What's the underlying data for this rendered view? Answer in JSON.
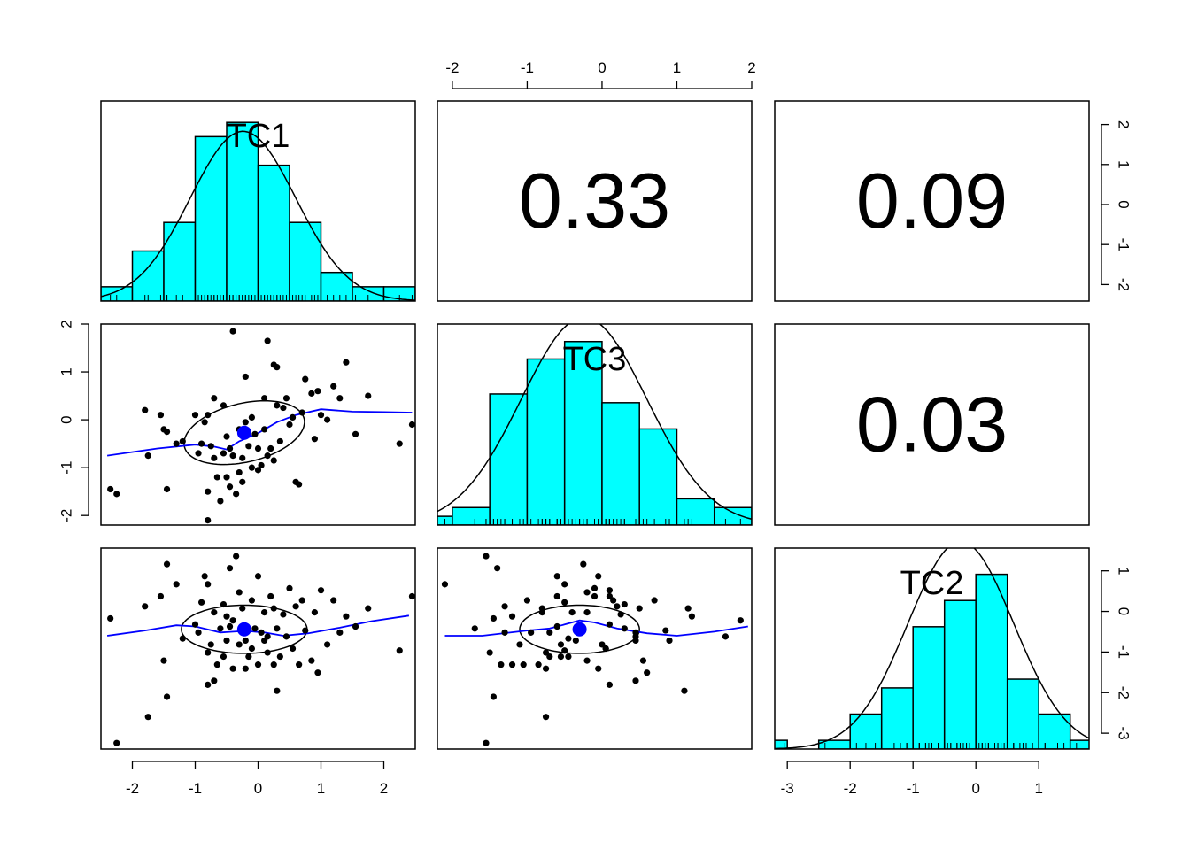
{
  "chart_data": {
    "type": "scatter",
    "variables": [
      "TC1",
      "TC3",
      "TC2"
    ],
    "title": "",
    "colors": {
      "hist_fill": "#00FFFF",
      "smooth_line": "#0000FF",
      "centroid": "#0000FF",
      "points": "#000000",
      "curve": "#000000"
    },
    "correlations": [
      {
        "row": "TC1",
        "col": "TC3",
        "value": "0.33"
      },
      {
        "row": "TC1",
        "col": "TC2",
        "value": "0.09"
      },
      {
        "row": "TC3",
        "col": "TC2",
        "value": "0.03"
      }
    ],
    "axes": {
      "TC1": {
        "range": [
          -2.5,
          2.5
        ],
        "ticks": [
          "-2",
          "-1",
          "0",
          "1",
          "2"
        ]
      },
      "TC3": {
        "range": [
          -2.2,
          2.0
        ],
        "ticks": [
          "-2",
          "-1",
          "0",
          "1",
          "2"
        ]
      },
      "TC2": {
        "range": [
          -3.2,
          1.8
        ],
        "ticks": [
          "-3",
          "-2",
          "-1",
          "0",
          "1"
        ]
      }
    },
    "histograms": {
      "TC1": {
        "breaks": [
          -2.5,
          -2.0,
          -1.5,
          -1.0,
          -0.5,
          0.0,
          0.5,
          1.0,
          1.5,
          2.0,
          2.5
        ],
        "density": [
          0.04,
          0.14,
          0.22,
          0.46,
          0.5,
          0.38,
          0.22,
          0.08,
          0.04,
          0.04
        ],
        "ymax": 0.56,
        "mean": -0.24,
        "sd": 0.84
      },
      "TC3": {
        "breaks": [
          -2.5,
          -2.0,
          -1.5,
          -1.0,
          -0.5,
          0.0,
          0.5,
          1.0,
          1.5,
          2.0
        ],
        "density": [
          0.02,
          0.04,
          0.3,
          0.38,
          0.42,
          0.28,
          0.22,
          0.06,
          0.04
        ],
        "ymax": 0.46,
        "mean": -0.24,
        "sd": 0.84
      },
      "TC2": {
        "breaks": [
          -3.5,
          -3.0,
          -2.5,
          -2.0,
          -1.5,
          -1.0,
          -0.5,
          0.0,
          0.5,
          1.0,
          1.5,
          2.0
        ],
        "density": [
          0.02,
          0.0,
          0.02,
          0.08,
          0.14,
          0.28,
          0.34,
          0.4,
          0.16,
          0.08,
          0.02
        ],
        "ymax": 0.46,
        "mean": -0.24,
        "sd": 0.84
      }
    },
    "pairs": {
      "TC1_TC3": {
        "center": [
          -0.22,
          -0.27
        ],
        "ellipse": {
          "rx": 1.0,
          "ry": 0.6,
          "angle": 21
        },
        "smooth": [
          [
            -2.4,
            -0.75
          ],
          [
            -1.6,
            -0.6
          ],
          [
            -1.0,
            -0.52
          ],
          [
            -0.7,
            -0.56
          ],
          [
            -0.5,
            -0.62
          ],
          [
            -0.3,
            -0.45
          ],
          [
            0.0,
            -0.28
          ],
          [
            0.3,
            -0.05
          ],
          [
            0.6,
            0.1
          ],
          [
            1.0,
            0.22
          ],
          [
            1.5,
            0.17
          ],
          [
            2.0,
            0.16
          ],
          [
            2.45,
            0.15
          ]
        ]
      },
      "TC1_TC2": {
        "center": [
          -0.22,
          -0.22
        ],
        "ellipse": {
          "rx": 1.0,
          "ry": 0.6,
          "angle": 0
        },
        "smooth": [
          [
            -2.4,
            -0.38
          ],
          [
            -1.8,
            -0.25
          ],
          [
            -1.3,
            -0.12
          ],
          [
            -1.0,
            -0.15
          ],
          [
            -0.6,
            -0.3
          ],
          [
            -0.2,
            -0.26
          ],
          [
            0.1,
            -0.3
          ],
          [
            0.4,
            -0.38
          ],
          [
            0.8,
            -0.32
          ],
          [
            1.3,
            -0.18
          ],
          [
            1.8,
            -0.02
          ],
          [
            2.4,
            0.12
          ]
        ]
      },
      "TC3_TC2": {
        "center": [
          -0.3,
          -0.22
        ],
        "ellipse": {
          "rx": 0.8,
          "ry": 0.6,
          "angle": 0
        },
        "smooth": [
          [
            -2.1,
            -0.38
          ],
          [
            -1.6,
            -0.38
          ],
          [
            -1.0,
            -0.25
          ],
          [
            -0.7,
            -0.2
          ],
          [
            -0.5,
            -0.1
          ],
          [
            -0.3,
            0.0
          ],
          [
            -0.1,
            -0.05
          ],
          [
            0.2,
            -0.2
          ],
          [
            0.6,
            -0.32
          ],
          [
            1.0,
            -0.38
          ],
          [
            1.5,
            -0.28
          ],
          [
            1.95,
            -0.15
          ]
        ]
      }
    },
    "points": [
      {
        "TC1": -2.35,
        "TC3": -1.45,
        "TC2": 0.05
      },
      {
        "TC1": -2.25,
        "TC3": -1.55,
        "TC2": -3.05
      },
      {
        "TC1": -1.8,
        "TC3": 0.2,
        "TC2": 0.35
      },
      {
        "TC1": -1.75,
        "TC3": -0.75,
        "TC2": -2.4
      },
      {
        "TC1": -1.55,
        "TC3": 0.1,
        "TC2": 0.6
      },
      {
        "TC1": -1.5,
        "TC3": -0.2,
        "TC2": -1.0
      },
      {
        "TC1": -1.45,
        "TC3": -1.45,
        "TC2": -1.9
      },
      {
        "TC1": -1.45,
        "TC3": -0.25,
        "TC2": 1.4
      },
      {
        "TC1": -1.3,
        "TC3": -0.5,
        "TC2": 0.9
      },
      {
        "TC1": -1.2,
        "TC3": -0.45,
        "TC2": -0.45
      },
      {
        "TC1": -1.0,
        "TC3": 0.1,
        "TC2": -0.1
      },
      {
        "TC1": -0.95,
        "TC3": -0.7,
        "TC2": -0.3
      },
      {
        "TC1": -0.9,
        "TC3": -0.5,
        "TC2": 0.45
      },
      {
        "TC1": -0.85,
        "TC3": -0.05,
        "TC2": 1.1
      },
      {
        "TC1": -0.8,
        "TC3": 0.1,
        "TC2": -1.6
      },
      {
        "TC1": -0.8,
        "TC3": -1.5,
        "TC2": -0.8
      },
      {
        "TC1": -0.8,
        "TC3": -2.1,
        "TC2": 0.9
      },
      {
        "TC1": -0.75,
        "TC3": -0.55,
        "TC2": -0.6
      },
      {
        "TC1": -0.7,
        "TC3": 0.45,
        "TC2": -1.5
      },
      {
        "TC1": -0.7,
        "TC3": -0.8,
        "TC2": 0.2
      },
      {
        "TC1": -0.65,
        "TC3": -1.2,
        "TC2": -1.1
      },
      {
        "TC1": -0.6,
        "TC3": -1.7,
        "TC2": -0.2
      },
      {
        "TC1": -0.55,
        "TC3": 0.3,
        "TC2": 0.4
      },
      {
        "TC1": -0.55,
        "TC3": -0.7,
        "TC2": -0.9
      },
      {
        "TC1": -0.5,
        "TC3": -0.35,
        "TC2": -0.5
      },
      {
        "TC1": -0.5,
        "TC3": -1.2,
        "TC2": 0.1
      },
      {
        "TC1": -0.45,
        "TC3": -1.4,
        "TC2": 1.3
      },
      {
        "TC1": -0.45,
        "TC3": -0.6,
        "TC2": -0.15
      },
      {
        "TC1": -0.4,
        "TC3": 1.85,
        "TC2": 0.0
      },
      {
        "TC1": -0.4,
        "TC3": -0.75,
        "TC2": -1.2
      },
      {
        "TC1": -0.35,
        "TC3": -1.55,
        "TC2": 1.6
      },
      {
        "TC1": -0.3,
        "TC3": -0.2,
        "TC2": 0.7
      },
      {
        "TC1": -0.3,
        "TC3": -1.1,
        "TC2": -0.6
      },
      {
        "TC1": -0.25,
        "TC3": -1.3,
        "TC2": -0.3
      },
      {
        "TC1": -0.25,
        "TC3": -0.8,
        "TC2": 0.3
      },
      {
        "TC1": -0.2,
        "TC3": -0.05,
        "TC2": -1.2
      },
      {
        "TC1": -0.2,
        "TC3": 0.9,
        "TC2": -0.5
      },
      {
        "TC1": -0.15,
        "TC3": -0.55,
        "TC2": -0.9
      },
      {
        "TC1": -0.1,
        "TC3": -1.0,
        "TC2": 0.5
      },
      {
        "TC1": -0.1,
        "TC3": 0.05,
        "TC2": -0.7
      },
      {
        "TC1": -0.05,
        "TC3": -0.3,
        "TC2": -0.2
      },
      {
        "TC1": 0.0,
        "TC3": -0.6,
        "TC2": 1.1
      },
      {
        "TC1": 0.0,
        "TC3": -1.05,
        "TC2": -1.1
      },
      {
        "TC1": 0.05,
        "TC3": -0.95,
        "TC2": -0.3
      },
      {
        "TC1": 0.1,
        "TC3": 0.45,
        "TC2": -0.5
      },
      {
        "TC1": 0.1,
        "TC3": -0.2,
        "TC2": 0.2
      },
      {
        "TC1": 0.15,
        "TC3": -0.75,
        "TC2": -0.8
      },
      {
        "TC1": 0.15,
        "TC3": 1.65,
        "TC2": -0.4
      },
      {
        "TC1": 0.2,
        "TC3": -0.6,
        "TC2": 0.6
      },
      {
        "TC1": 0.25,
        "TC3": -0.85,
        "TC2": -1.1
      },
      {
        "TC1": 0.25,
        "TC3": 1.15,
        "TC2": 0.3
      },
      {
        "TC1": 0.3,
        "TC3": 1.1,
        "TC2": -1.75
      },
      {
        "TC1": 0.3,
        "TC3": 0.3,
        "TC2": -0.2
      },
      {
        "TC1": 0.35,
        "TC3": -0.45,
        "TC2": -0.9
      },
      {
        "TC1": 0.4,
        "TC3": 0.25,
        "TC2": 0.15
      },
      {
        "TC1": 0.45,
        "TC3": 0.45,
        "TC2": -0.4
      },
      {
        "TC1": 0.5,
        "TC3": -0.1,
        "TC2": 0.8
      },
      {
        "TC1": 0.55,
        "TC3": 0.05,
        "TC2": -0.7
      },
      {
        "TC1": 0.6,
        "TC3": -1.3,
        "TC2": 0.35
      },
      {
        "TC1": 0.65,
        "TC3": -1.35,
        "TC2": -1.1
      },
      {
        "TC1": 0.7,
        "TC3": 0.15,
        "TC2": 0.5
      },
      {
        "TC1": 0.75,
        "TC3": 0.85,
        "TC2": -0.25
      },
      {
        "TC1": 0.85,
        "TC3": 0.55,
        "TC2": -1.0
      },
      {
        "TC1": 0.9,
        "TC3": -0.4,
        "TC2": 0.2
      },
      {
        "TC1": 0.95,
        "TC3": 0.6,
        "TC2": -1.3
      },
      {
        "TC1": 1.0,
        "TC3": 0.1,
        "TC2": 0.75
      },
      {
        "TC1": 1.1,
        "TC3": 0.0,
        "TC2": -0.6
      },
      {
        "TC1": 1.2,
        "TC3": 0.7,
        "TC2": 0.5
      },
      {
        "TC1": 1.3,
        "TC3": 0.45,
        "TC2": -0.3
      },
      {
        "TC1": 1.4,
        "TC3": 1.2,
        "TC2": 0.1
      },
      {
        "TC1": 1.55,
        "TC3": -0.3,
        "TC2": -0.15
      },
      {
        "TC1": 1.75,
        "TC3": 0.5,
        "TC2": 0.3
      },
      {
        "TC1": 2.25,
        "TC3": -0.5,
        "TC2": -0.75
      },
      {
        "TC1": 2.45,
        "TC3": -0.1,
        "TC2": 0.6
      }
    ]
  }
}
